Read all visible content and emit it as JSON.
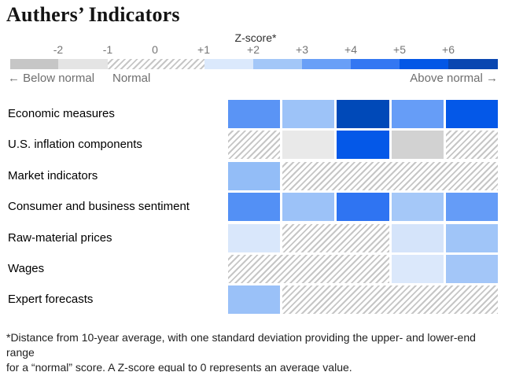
{
  "title": "Authers’ Indicators",
  "legend": {
    "label": "Z-score*",
    "ticks": [
      "-2",
      "-1",
      "0",
      "+1",
      "+2",
      "+3",
      "+4",
      "+5",
      "+6"
    ],
    "below_label": "← Below normal",
    "normal_label": "Normal",
    "above_label": "Above normal →",
    "segments": [
      {
        "range": "below -2",
        "color": "#c6c6c6",
        "width": 61
      },
      {
        "range": "-2 to -1",
        "color": "#e4e4e4",
        "width": 63
      },
      {
        "range": "-1 to +1 (normal)",
        "color": "hatch",
        "width": 123
      },
      {
        "range": "+1 to +2",
        "color": "#dbe9fc",
        "width": 62
      },
      {
        "range": "+2 to +3",
        "color": "#a3c7f8",
        "width": 62
      },
      {
        "range": "+3 to +4",
        "color": "#699ff7",
        "width": 62
      },
      {
        "range": "+4 to +5",
        "color": "#3377f2",
        "width": 62
      },
      {
        "range": "+5 to +6",
        "color": "#0357e6",
        "width": 62
      },
      {
        "range": "above +6",
        "color": "#0a47b1",
        "width": 63
      }
    ]
  },
  "footnote": {
    "line1": "*Distance from 10-year average, with one standard deviation providing the upper- and lower-end range",
    "line2": "for a “normal” score. A Z-score equal to 0 represents an average value."
  },
  "chart_data": {
    "type": "heatmap",
    "title": "Authers’ Indicators",
    "colorbar_label": "Z-score*",
    "scale": {
      "min": -3,
      "max": 7,
      "normal_band": [
        -1,
        1
      ],
      "tick_labels": [
        "-2",
        "-1",
        "0",
        "+1",
        "+2",
        "+3",
        "+4",
        "+5",
        "+6"
      ]
    },
    "n_columns": 5,
    "rows": [
      {
        "label": "Economic measures",
        "cells": [
          {
            "z": 3.8,
            "color": "#5a94f5"
          },
          {
            "z": 2.6,
            "color": "#9dc3f8"
          },
          {
            "z": 6.6,
            "color": "#0049b8"
          },
          {
            "z": 3.5,
            "color": "#669df7"
          },
          {
            "z": 5.5,
            "color": "#0458e8"
          }
        ]
      },
      {
        "label": "U.S. inflation components",
        "cells": [
          {
            "normal": true
          },
          {
            "z": -1.4,
            "color": "#e9e9e9"
          },
          {
            "z": 5.5,
            "color": "#0458e8"
          },
          {
            "z": -2.1,
            "color": "#d2d2d2"
          },
          {
            "normal": true
          }
        ]
      },
      {
        "label": "Market indicators",
        "cells": [
          {
            "z": 2.8,
            "color": "#93bdf7"
          },
          {
            "normal": true
          },
          {
            "normal": true
          },
          {
            "normal": true
          },
          {
            "normal": true
          }
        ]
      },
      {
        "label": "Consumer and business sentiment",
        "cells": [
          {
            "z": 4.0,
            "color": "#5390f5"
          },
          {
            "z": 2.6,
            "color": "#9cc2f8"
          },
          {
            "z": 4.6,
            "color": "#2f74f2"
          },
          {
            "z": 2.4,
            "color": "#a5c8f8"
          },
          {
            "z": 3.5,
            "color": "#659cf7"
          }
        ]
      },
      {
        "label": "Raw-material prices",
        "cells": [
          {
            "z": 1.5,
            "color": "#d9e7fb"
          },
          {
            "normal": true
          },
          {
            "normal": true
          },
          {
            "z": 1.6,
            "color": "#d5e4fa"
          },
          {
            "z": 2.5,
            "color": "#a0c5f8"
          }
        ]
      },
      {
        "label": "Wages",
        "cells": [
          {
            "normal": true
          },
          {
            "normal": true
          },
          {
            "normal": true
          },
          {
            "z": 1.5,
            "color": "#dbe8fb"
          },
          {
            "z": 2.5,
            "color": "#a3c6f8"
          }
        ]
      },
      {
        "label": "Expert forecasts",
        "cells": [
          {
            "z": 2.7,
            "color": "#9ac1f8"
          },
          {
            "normal": true
          },
          {
            "normal": true
          },
          {
            "normal": true
          },
          {
            "normal": true
          }
        ]
      }
    ]
  }
}
